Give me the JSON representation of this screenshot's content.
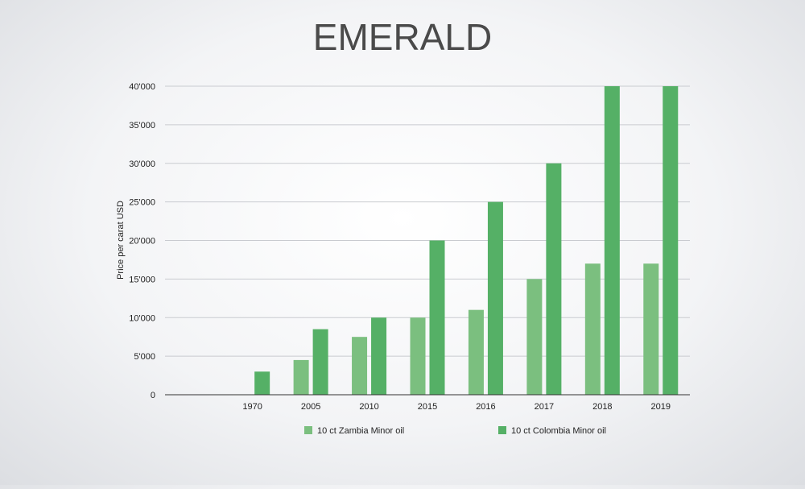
{
  "chart_data": {
    "type": "bar",
    "title": "EMERALD",
    "xlabel": "",
    "ylabel": "Price per carat USD",
    "categories": [
      "",
      "1970",
      "2005",
      "2010",
      "2015",
      "2016",
      "2017",
      "2018",
      "2019"
    ],
    "series": [
      {
        "name": "10 ct Zambia Minor oil",
        "color": "#7bbf7f",
        "values": [
          null,
          null,
          4500,
          7500,
          10000,
          11000,
          15000,
          17000,
          17000
        ]
      },
      {
        "name": "10 ct Colombia Minor oil",
        "color": "#55b066",
        "values": [
          null,
          3000,
          8500,
          10000,
          20000,
          25000,
          30000,
          40000,
          40000
        ]
      }
    ],
    "ylim": [
      0,
      40000
    ],
    "yticks": [
      0,
      5000,
      10000,
      15000,
      20000,
      25000,
      30000,
      35000,
      40000
    ],
    "ytick_labels": [
      "0",
      "5'000",
      "10'000",
      "15'000",
      "20'000",
      "25'000",
      "30'000",
      "35'000",
      "40'000"
    ],
    "grid": true,
    "legend_position": "bottom"
  }
}
